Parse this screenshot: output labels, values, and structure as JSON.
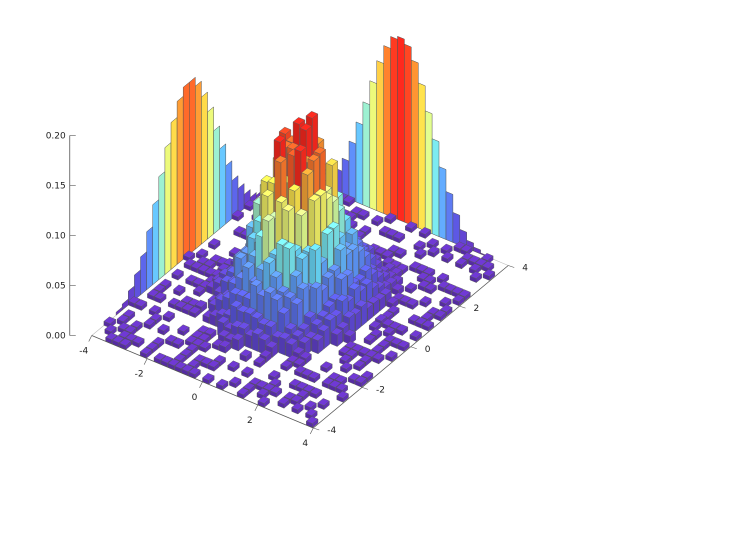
{
  "chart_data": {
    "type": "bar3d",
    "title": "",
    "xlabel": "",
    "ylabel": "",
    "zlabel": "",
    "xlim": [
      -4,
      4
    ],
    "ylim": [
      -4,
      4
    ],
    "zlim": [
      0,
      0.2
    ],
    "bin_width": 0.25,
    "colormap": "rainbow (purple low to red high)",
    "x_ticks": [
      "-4",
      "-2",
      "0",
      "2",
      "4"
    ],
    "y_ticks": [
      "-4",
      "-2",
      "0",
      "2",
      "4"
    ],
    "z_ticks": [
      "0.00",
      "0.05",
      "0.10",
      "0.15",
      "0.20"
    ],
    "distribution": {
      "mean_x": 0,
      "mean_y": 0,
      "std": 1,
      "correlation": 0,
      "peak_density": 0.16
    },
    "marginal_x": {
      "bins": [
        -3.0,
        -2.75,
        -2.5,
        -2.25,
        -2.0,
        -1.75,
        -1.5,
        -1.25,
        -1.0,
        -0.75,
        -0.5,
        -0.25,
        0.0,
        0.25,
        0.5,
        0.75,
        1.0,
        1.25,
        1.5,
        1.75,
        2.0,
        2.25,
        2.5,
        2.75,
        3.0
      ],
      "values": [
        0.003,
        0.006,
        0.014,
        0.025,
        0.038,
        0.058,
        0.08,
        0.103,
        0.127,
        0.147,
        0.163,
        0.172,
        0.172,
        0.163,
        0.147,
        0.127,
        0.103,
        0.08,
        0.058,
        0.038,
        0.025,
        0.014,
        0.006,
        0.003,
        0.001
      ]
    },
    "marginal_y": {
      "bins": [
        -3.0,
        -2.75,
        -2.5,
        -2.25,
        -2.0,
        -1.75,
        -1.5,
        -1.25,
        -1.0,
        -0.75,
        -0.5,
        -0.25,
        0.0,
        0.25,
        0.5,
        0.75,
        1.0,
        1.25,
        1.5,
        1.75,
        2.0,
        2.25,
        2.5,
        2.75,
        3.0
      ],
      "values": [
        0.003,
        0.006,
        0.014,
        0.025,
        0.038,
        0.058,
        0.08,
        0.103,
        0.127,
        0.15,
        0.168,
        0.18,
        0.183,
        0.178,
        0.165,
        0.145,
        0.12,
        0.095,
        0.07,
        0.048,
        0.03,
        0.016,
        0.008,
        0.004,
        0.001
      ]
    }
  },
  "colors": {
    "low": "#6a2fc0",
    "mid": "#66e0ff",
    "high": "#ff2a1a",
    "edge": "#4a4a4a"
  }
}
